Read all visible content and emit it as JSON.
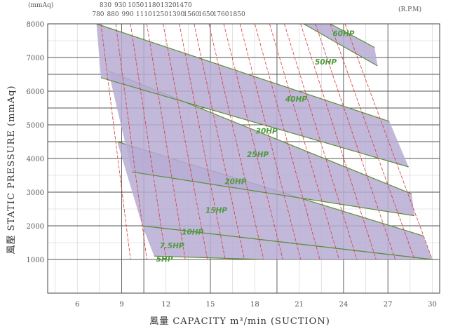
{
  "chart_data": {
    "type": "area",
    "xlabel": "風量 CAPACITY m³/min (SUCTION)",
    "ylabel": "風壓 STATIC PRESSURE (mmAq)",
    "corner_left": "(mmAq)",
    "corner_right": "(R.P.M)",
    "xlim": [
      4,
      30.5
    ],
    "ylim": [
      0,
      8000
    ],
    "x_ticks": [
      6,
      9,
      12,
      15,
      18,
      21,
      24,
      27,
      30
    ],
    "y_ticks": [
      1000,
      2000,
      3000,
      4000,
      5000,
      6000,
      7000,
      8000
    ],
    "grid_x_major": [
      9,
      10.5,
      15,
      19.5,
      24,
      27
    ],
    "grid_y_major": [
      4500,
      5500,
      6500
    ],
    "rpm_top_row": [
      "830",
      "930",
      "1050",
      "1180",
      "1320",
      "1470"
    ],
    "rpm_bottom_row": [
      "780",
      "880",
      "990",
      "1110",
      "1250",
      "1390",
      "1560",
      "1650",
      "1760",
      "1850"
    ],
    "rpm_lines": [
      {
        "x_top": 7.6,
        "x_bottom": 9.6
      },
      {
        "x_top": 8.6,
        "x_bottom": 10.7
      },
      {
        "x_top": 9.6,
        "x_bottom": 12.0
      },
      {
        "x_top": 10.7,
        "x_bottom": 13.3
      },
      {
        "x_top": 11.8,
        "x_bottom": 14.8
      },
      {
        "x_top": 12.9,
        "x_bottom": 16.0
      },
      {
        "x_top": 13.9,
        "x_bottom": 17.3
      },
      {
        "x_top": 14.9,
        "x_bottom": 18.6
      },
      {
        "x_top": 15.9,
        "x_bottom": 19.9
      },
      {
        "x_top": 17.0,
        "x_bottom": 21.1
      },
      {
        "x_top": 18.0,
        "x_bottom": 22.4
      },
      {
        "x_top": 19.0,
        "x_bottom": 23.7
      },
      {
        "x_top": 20.0,
        "x_bottom": 24.9
      },
      {
        "x_top": 21.1,
        "x_bottom": 26.2
      },
      {
        "x_top": 22.1,
        "x_bottom": 27.5
      },
      {
        "x_top": 23.1,
        "x_bottom": 28.8
      },
      {
        "x_top": 24.1,
        "x_bottom": 30.0
      }
    ],
    "bands": [
      {
        "upper": [
          [
            10.4,
            2000
          ],
          [
            30,
            1000
          ]
        ],
        "lower": [
          [
            11.2,
            1100
          ],
          [
            18.5,
            1000
          ]
        ]
      },
      {
        "upper": [
          [
            8.7,
            4500
          ],
          [
            29.4,
            1700
          ]
        ],
        "lower": [
          [
            10.4,
            2000
          ],
          [
            30,
            1000
          ]
        ]
      },
      {
        "upper": [
          [
            8.1,
            6600
          ],
          [
            28.6,
            2950
          ]
        ],
        "lower": [
          [
            9.7,
            3600
          ],
          [
            28.8,
            2300
          ]
        ]
      },
      {
        "upper": [
          [
            7.3,
            8000
          ],
          [
            27.1,
            5100
          ]
        ],
        "lower": [
          [
            7.6,
            6400
          ],
          [
            28.4,
            3750
          ]
        ]
      },
      {
        "upper": [
          [
            21.3,
            8000
          ],
          [
            26.3,
            6750
          ]
        ],
        "lower": [
          [
            23.1,
            8000
          ],
          [
            26.1,
            7300
          ]
        ]
      }
    ],
    "hp_labels": [
      {
        "text": "5HP",
        "x": 11.9,
        "y": 1000
      },
      {
        "text": "7.5HP",
        "x": 12.4,
        "y": 1400
      },
      {
        "text": "10HP",
        "x": 13.8,
        "y": 1800
      },
      {
        "text": "15HP",
        "x": 15.4,
        "y": 2450
      },
      {
        "text": "20HP",
        "x": 16.7,
        "y": 3300
      },
      {
        "text": "25HP",
        "x": 18.2,
        "y": 4100
      },
      {
        "text": "30HP",
        "x": 18.8,
        "y": 4800
      },
      {
        "text": "40HP",
        "x": 20.8,
        "y": 5750
      },
      {
        "text": "50HP",
        "x": 22.8,
        "y": 6850
      },
      {
        "text": "60HP",
        "x": 24.0,
        "y": 7700
      }
    ]
  }
}
